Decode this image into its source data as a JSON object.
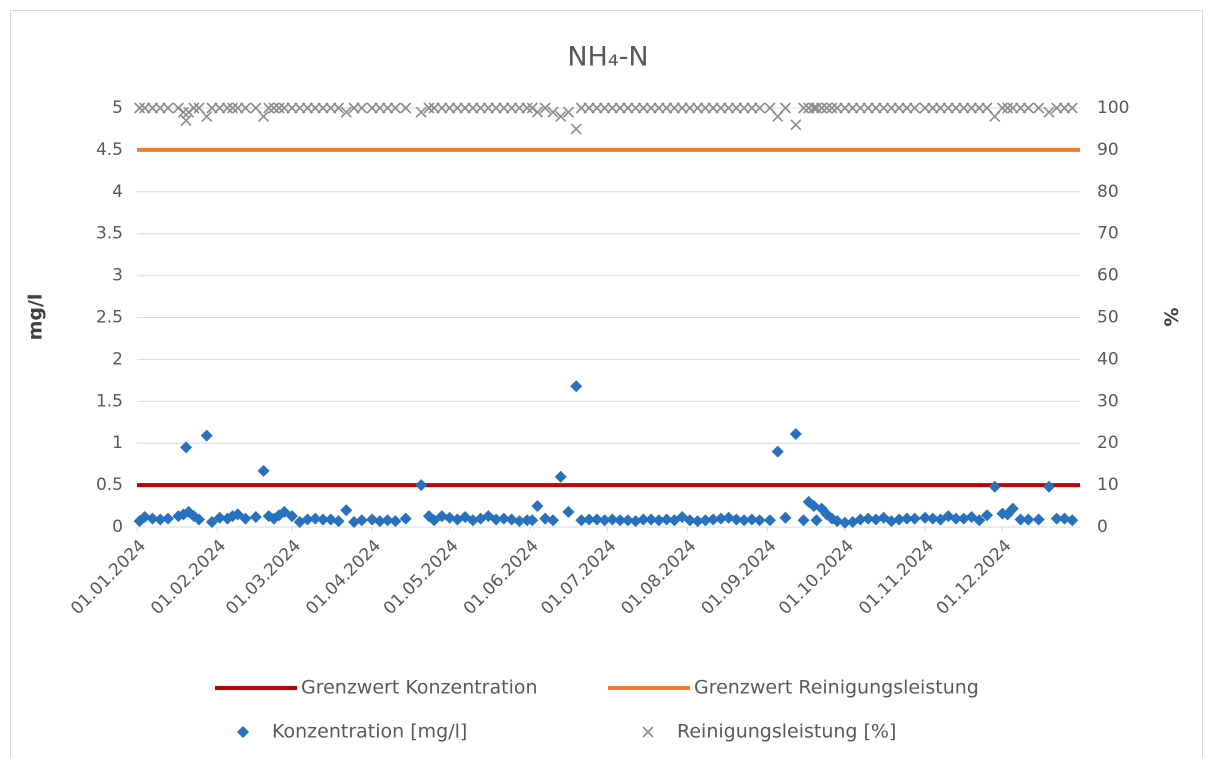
{
  "chart_data": {
    "type": "scatter",
    "title": "NH₄-N",
    "y_label": "mg/l",
    "y2_label": "%",
    "ylim": [
      0,
      5
    ],
    "yticks": [
      0,
      0.5,
      1,
      1.5,
      2,
      2.5,
      3,
      3.5,
      4,
      4.5,
      5
    ],
    "y2lim": [
      0,
      100
    ],
    "y2ticks": [
      0,
      10,
      20,
      30,
      40,
      50,
      60,
      70,
      80,
      90,
      100
    ],
    "xlim": [
      "01.01.2024",
      "31.12.2024"
    ],
    "xticks": [
      "01.01.2024",
      "01.02.2024",
      "01.03.2024",
      "01.04.2024",
      "01.05.2024",
      "01.06.2024",
      "01.07.2024",
      "01.08.2024",
      "01.09.2024",
      "01.10.2024",
      "01.11.2024",
      "01.12.2024"
    ],
    "grid": true,
    "legend": "bottom",
    "x": [
      "02.01.2024",
      "04.01.2024",
      "07.01.2024",
      "10.01.2024",
      "13.01.2024",
      "17.01.2024",
      "19.01.2024",
      "20.01.2024",
      "21.01.2024",
      "23.01.2024",
      "25.01.2024",
      "28.01.2024",
      "30.01.2024",
      "02.02.2024",
      "05.02.2024",
      "07.02.2024",
      "09.02.2024",
      "12.02.2024",
      "16.02.2024",
      "19.02.2024",
      "21.02.2024",
      "23.02.2024",
      "25.02.2024",
      "27.02.2024",
      "01.03.2024",
      "04.03.2024",
      "07.03.2024",
      "10.03.2024",
      "13.03.2024",
      "16.03.2024",
      "19.03.2024",
      "22.03.2024",
      "25.03.2024",
      "28.03.2024",
      "01.04.2024",
      "04.04.2024",
      "07.04.2024",
      "10.04.2024",
      "14.04.2024",
      "20.04.2024",
      "23.04.2024",
      "25.04.2024",
      "28.04.2024",
      "01.05.2024",
      "04.05.2024",
      "07.05.2024",
      "10.05.2024",
      "13.05.2024",
      "16.05.2024",
      "19.05.2024",
      "22.05.2024",
      "25.05.2024",
      "28.05.2024",
      "31.05.2024",
      "02.06.2024",
      "04.06.2024",
      "07.06.2024",
      "10.06.2024",
      "13.06.2024",
      "16.06.2024",
      "19.06.2024",
      "21.06.2024",
      "24.06.2024",
      "27.06.2024",
      "30.06.2024",
      "03.07.2024",
      "06.07.2024",
      "09.07.2024",
      "12.07.2024",
      "15.07.2024",
      "18.07.2024",
      "21.07.2024",
      "24.07.2024",
      "27.07.2024",
      "30.07.2024",
      "02.08.2024",
      "05.08.2024",
      "08.08.2024",
      "11.08.2024",
      "14.08.2024",
      "17.08.2024",
      "20.08.2024",
      "23.08.2024",
      "26.08.2024",
      "29.08.2024",
      "02.09.2024",
      "05.09.2024",
      "08.09.2024",
      "12.09.2024",
      "15.09.2024",
      "17.09.2024",
      "19.09.2024",
      "20.09.2024",
      "22.09.2024",
      "24.09.2024",
      "26.09.2024",
      "28.09.2024",
      "01.10.2024",
      "04.10.2024",
      "07.10.2024",
      "10.10.2024",
      "13.10.2024",
      "16.10.2024",
      "19.10.2024",
      "22.10.2024",
      "25.10.2024",
      "28.10.2024",
      "01.11.2024",
      "04.11.2024",
      "07.11.2024",
      "10.11.2024",
      "13.11.2024",
      "16.11.2024",
      "19.11.2024",
      "22.11.2024",
      "25.11.2024",
      "28.11.2024",
      "01.12.2024",
      "03.12.2024",
      "05.12.2024",
      "08.12.2024",
      "11.12.2024",
      "15.12.2024",
      "19.12.2024",
      "22.12.2024",
      "25.12.2024",
      "28.12.2024"
    ],
    "series": [
      {
        "name": "Grenzwert Konzentration",
        "type": "line",
        "color": "#c00000",
        "x": [
          "01.01.2024",
          "31.12.2024"
        ],
        "values": [
          0.5,
          0.5
        ]
      },
      {
        "name": "Grenzwert Reinigungsleistung",
        "type": "line",
        "color": "#ed7d31",
        "axis": "y2",
        "x": [
          "01.01.2024",
          "31.12.2024"
        ],
        "values": [
          90,
          90
        ]
      },
      {
        "name": "Konzentration [mg/l]",
        "type": "scatter",
        "marker": "diamond",
        "color": "#2672c0",
        "values": [
          0.07,
          0.12,
          0.1,
          0.09,
          0.1,
          0.13,
          0.15,
          0.95,
          0.18,
          0.13,
          0.09,
          1.09,
          0.06,
          0.11,
          0.1,
          0.13,
          0.15,
          0.1,
          0.12,
          0.67,
          0.13,
          0.1,
          0.14,
          0.18,
          0.13,
          0.06,
          0.09,
          0.1,
          0.09,
          0.09,
          0.07,
          0.2,
          0.06,
          0.08,
          0.09,
          0.07,
          0.08,
          0.07,
          0.1,
          0.5,
          0.13,
          0.08,
          0.13,
          0.11,
          0.09,
          0.12,
          0.08,
          0.1,
          0.13,
          0.09,
          0.1,
          0.09,
          0.07,
          0.08,
          0.08,
          0.25,
          0.1,
          0.08,
          0.6,
          0.18,
          1.68,
          0.08,
          0.09,
          0.09,
          0.08,
          0.09,
          0.08,
          0.08,
          0.07,
          0.09,
          0.09,
          0.08,
          0.09,
          0.08,
          0.12,
          0.08,
          0.07,
          0.08,
          0.09,
          0.1,
          0.11,
          0.09,
          0.08,
          0.09,
          0.08,
          0.08,
          0.9,
          0.11,
          1.11,
          0.08,
          0.3,
          0.25,
          0.08,
          0.22,
          0.15,
          0.1,
          0.07,
          0.05,
          0.06,
          0.09,
          0.1,
          0.09,
          0.11,
          0.07,
          0.09,
          0.1,
          0.1,
          0.11,
          0.1,
          0.09,
          0.13,
          0.1,
          0.1,
          0.12,
          0.08,
          0.14,
          0.48,
          0.16,
          0.15,
          0.22,
          0.09,
          0.09,
          0.09,
          0.48,
          0.1,
          0.1,
          0.08
        ]
      },
      {
        "name": "Reinigungsleistung [%]",
        "type": "scatter",
        "marker": "x",
        "color": "#8c8c8c",
        "axis": "y2",
        "values": [
          100,
          100,
          100,
          100,
          100,
          100,
          99,
          97,
          99,
          100,
          100,
          98,
          100,
          100,
          100,
          100,
          100,
          100,
          100,
          98,
          100,
          100,
          100,
          100,
          100,
          100,
          100,
          100,
          100,
          100,
          100,
          99,
          100,
          100,
          100,
          100,
          100,
          100,
          100,
          99,
          100,
          100,
          100,
          100,
          100,
          100,
          100,
          100,
          100,
          100,
          100,
          100,
          100,
          100,
          100,
          99,
          100,
          99,
          98,
          99,
          95,
          100,
          100,
          100,
          100,
          100,
          100,
          100,
          100,
          100,
          100,
          100,
          100,
          100,
          100,
          100,
          100,
          100,
          100,
          100,
          100,
          100,
          100,
          100,
          100,
          100,
          98,
          100,
          96,
          100,
          100,
          100,
          100,
          100,
          100,
          100,
          100,
          100,
          100,
          100,
          100,
          100,
          100,
          100,
          100,
          100,
          100,
          100,
          100,
          100,
          100,
          100,
          100,
          100,
          100,
          100,
          98,
          100,
          100,
          100,
          100,
          100,
          100,
          99,
          100,
          100,
          100
        ]
      }
    ]
  }
}
